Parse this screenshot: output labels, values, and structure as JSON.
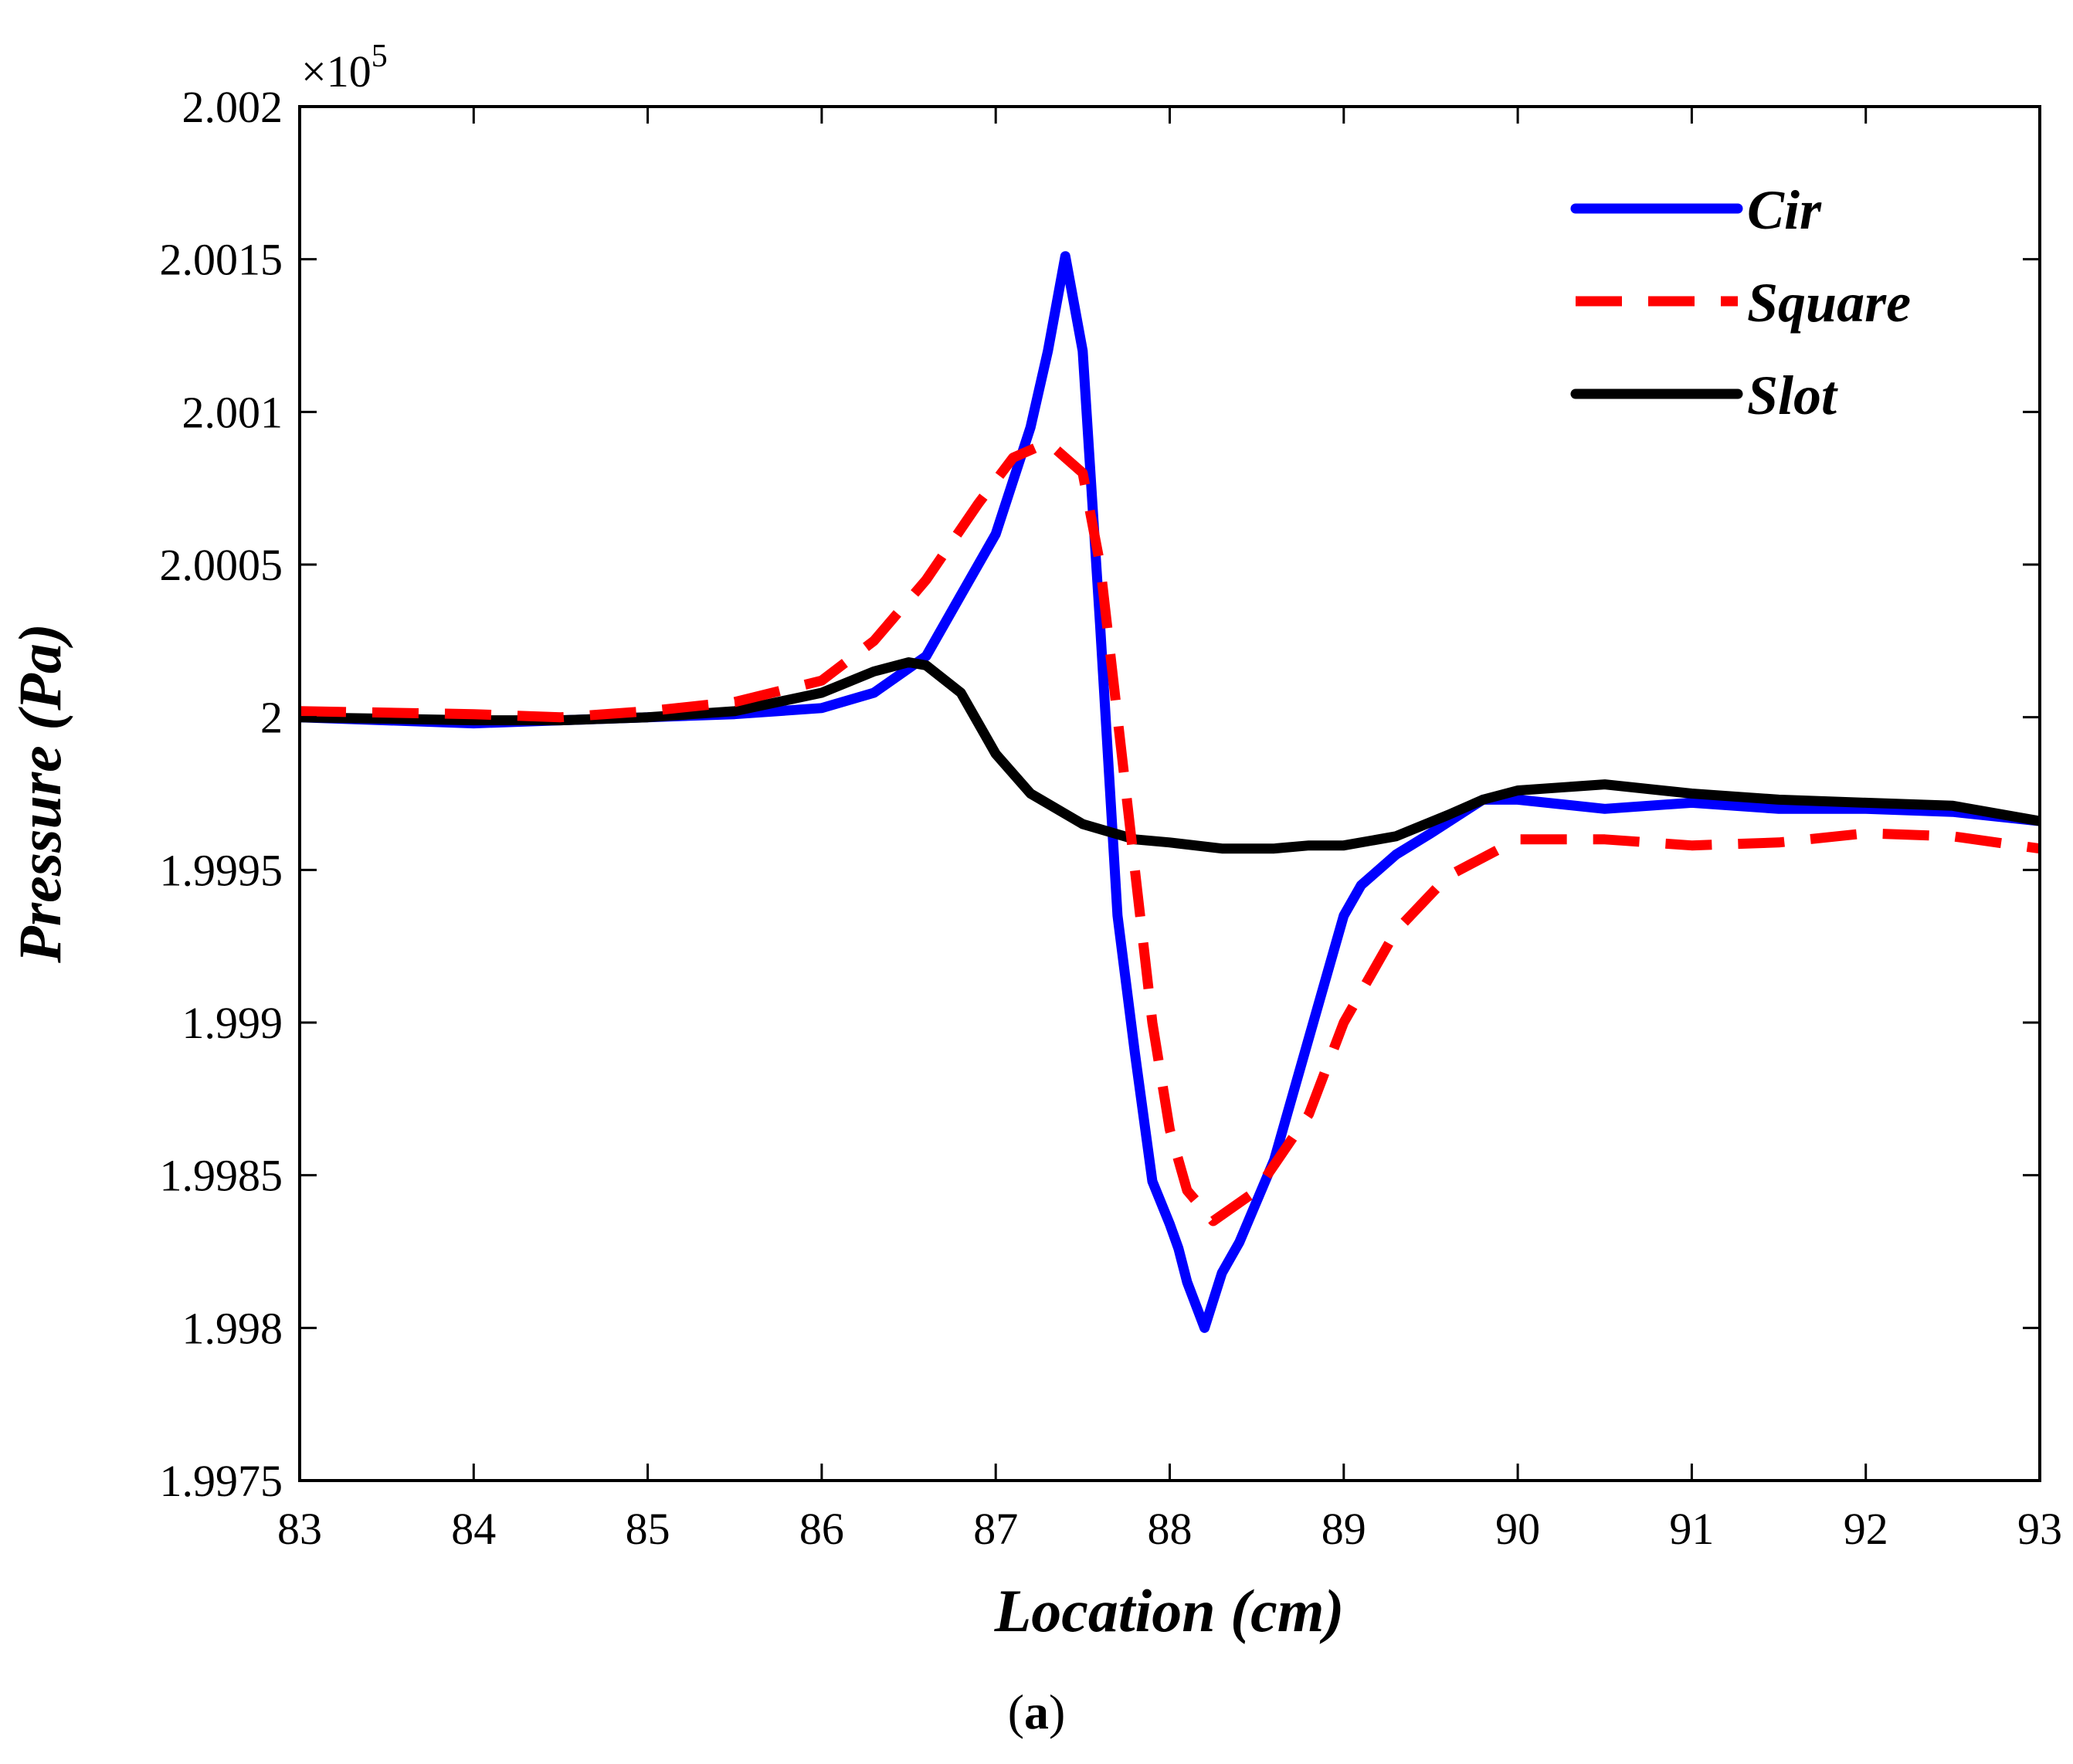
{
  "chart_data": {
    "type": "line",
    "title": "",
    "xlabel": "Location (cm)",
    "ylabel": "Pressure (Pa)",
    "xlim": [
      83,
      93
    ],
    "ylim": [
      1.9975,
      2.002
    ],
    "y_multiplier": "×10",
    "y_multiplier_exp": "5",
    "xticks": [
      83,
      84,
      85,
      86,
      87,
      88,
      89,
      90,
      91,
      92,
      93
    ],
    "xtick_labels": [
      "83",
      "84",
      "85",
      "86",
      "87",
      "88",
      "89",
      "90",
      "91",
      "92",
      "93"
    ],
    "yticks": [
      1.9975,
      1.998,
      1.9985,
      1.999,
      1.9995,
      2.0,
      2.0005,
      2.001,
      2.0015,
      2.002
    ],
    "ytick_labels": [
      "1.9975",
      "1.998",
      "1.9985",
      "1.999",
      "1.9995",
      "2",
      "2.0005",
      "2.001",
      "2.0015",
      "2.002"
    ],
    "grid": false,
    "legend_position": "top-right",
    "series": [
      {
        "name": "Cir",
        "color": "#0000ff",
        "style": "solid",
        "x": [
          83,
          84,
          84.5,
          85,
          85.5,
          86,
          86.3,
          86.6,
          86.8,
          87.0,
          87.2,
          87.3,
          87.4,
          87.5,
          87.6,
          87.7,
          87.8,
          87.9,
          88.0,
          88.05,
          88.1,
          88.2,
          88.3,
          88.4,
          88.6,
          88.8,
          89.0,
          89.1,
          89.3,
          89.5,
          89.8,
          90.0,
          90.5,
          91.0,
          91.5,
          92.0,
          92.5,
          93.0
        ],
        "values": [
          2.0,
          1.99998,
          1.99999,
          2.0,
          2.00001,
          2.00003,
          2.00008,
          2.0002,
          2.0004,
          2.0006,
          2.00095,
          2.0012,
          2.00151,
          2.0012,
          2.0003,
          1.99935,
          1.9989,
          1.99848,
          1.99834,
          1.99826,
          1.99815,
          1.998,
          1.99818,
          1.99828,
          1.99855,
          1.99895,
          1.99935,
          1.99945,
          1.99955,
          1.99962,
          1.99973,
          1.99973,
          1.9997,
          1.99972,
          1.9997,
          1.9997,
          1.99969,
          1.99966
        ]
      },
      {
        "name": "Square",
        "color": "#ff0000",
        "style": "dashed",
        "x": [
          83,
          84,
          84.5,
          85,
          85.5,
          86,
          86.3,
          86.6,
          86.9,
          87.1,
          87.3,
          87.5,
          87.6,
          87.7,
          87.8,
          87.9,
          88.0,
          88.1,
          88.25,
          88.5,
          88.8,
          89.0,
          89.3,
          89.6,
          90.0,
          90.5,
          91.0,
          91.5,
          92.0,
          92.5,
          93.0
        ],
        "values": [
          2.00002,
          2.00001,
          2.0,
          2.00002,
          2.00005,
          2.00012,
          2.00025,
          2.00045,
          2.0007,
          2.00085,
          2.0009,
          2.0008,
          2.0005,
          2.0,
          1.9995,
          1.999,
          1.99865,
          1.99845,
          1.99835,
          1.99845,
          1.9987,
          1.999,
          1.9993,
          1.99948,
          1.9996,
          1.9996,
          1.99958,
          1.99959,
          1.99962,
          1.99961,
          1.99957
        ]
      },
      {
        "name": "Slot",
        "color": "#000000",
        "style": "solid",
        "x": [
          83,
          84,
          84.5,
          85,
          85.5,
          86,
          86.3,
          86.5,
          86.6,
          86.8,
          87.0,
          87.2,
          87.5,
          87.8,
          88.0,
          88.3,
          88.6,
          88.8,
          89.0,
          89.3,
          89.6,
          89.8,
          90.0,
          90.5,
          91.0,
          91.5,
          92.0,
          92.5,
          93.0
        ],
        "values": [
          2.0,
          1.99999,
          1.99999,
          2.0,
          2.00002,
          2.00008,
          2.00015,
          2.00018,
          2.00017,
          2.00008,
          1.99988,
          1.99975,
          1.99965,
          1.9996,
          1.99959,
          1.99957,
          1.99957,
          1.99958,
          1.99958,
          1.99961,
          1.99968,
          1.99973,
          1.99976,
          1.99978,
          1.99975,
          1.99973,
          1.99972,
          1.99971,
          1.99966
        ]
      }
    ]
  },
  "caption": {
    "open": "(",
    "label": "a",
    "close": ")"
  }
}
